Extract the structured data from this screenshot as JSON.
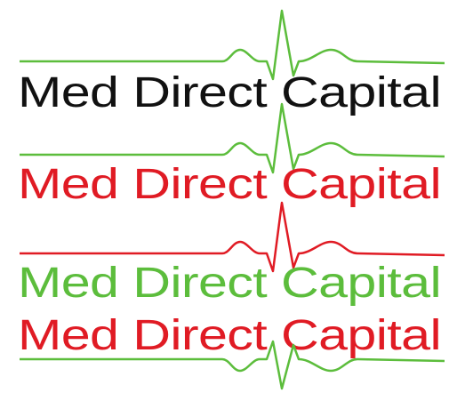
{
  "logos": [
    {
      "text": "Med Direct Capital",
      "text_color": "#111111",
      "pulse_color": "#5cbd3c"
    },
    {
      "text": "Med Direct Capital",
      "text_color": "#e01b24",
      "pulse_color": "#5cbd3c"
    },
    {
      "text": "Med Direct Capital",
      "text_color": "#5cbd3c",
      "pulse_color": "#e01b24"
    },
    {
      "text": "Med Direct Capital",
      "text_color": "#e01b24",
      "pulse_color": "#5cbd3c"
    }
  ]
}
